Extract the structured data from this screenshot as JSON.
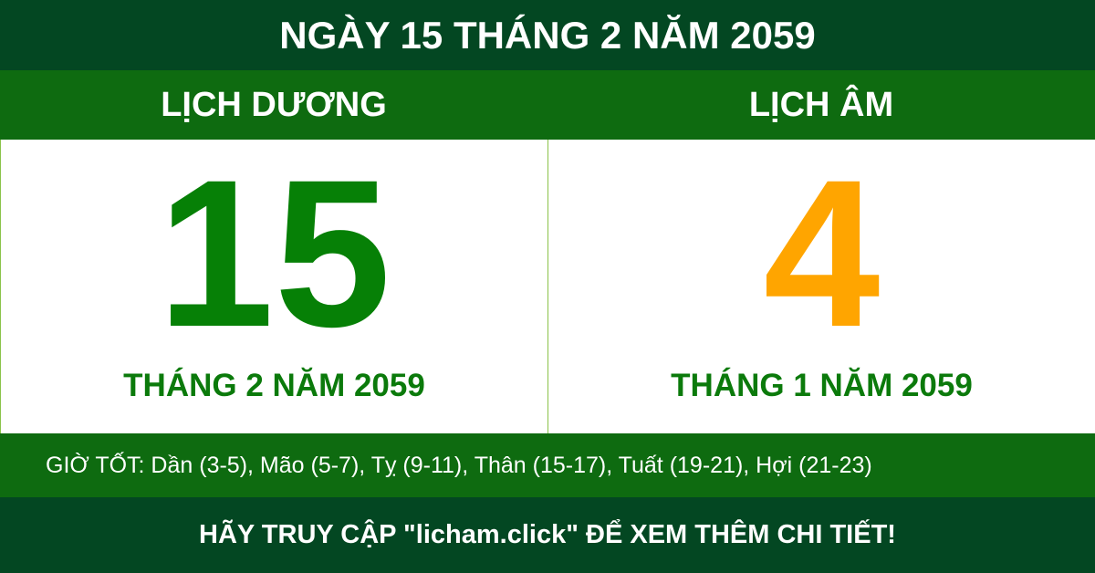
{
  "title": "NGÀY 15 THÁNG 2 NĂM 2059",
  "solar": {
    "label": "LỊCH DƯƠNG",
    "day": "15",
    "month_year": "THÁNG 2 NĂM 2059"
  },
  "lunar": {
    "label": "LỊCH ÂM",
    "day": "4",
    "month_year": "THÁNG 1 NĂM 2059"
  },
  "good_hours": "GIỜ TỐT: Dần (3-5), Mão (5-7), Tỵ (9-11), Thân (15-17), Tuất (19-21), Hợi (21-23)",
  "footer": "HÃY TRUY CẬP \"licham.click\" ĐỂ XEM THÊM CHI TIẾT!",
  "colors": {
    "dark_green": "#034722",
    "green": "#0e6b10",
    "solar_day": "#068006",
    "lunar_day": "#ffa500"
  }
}
